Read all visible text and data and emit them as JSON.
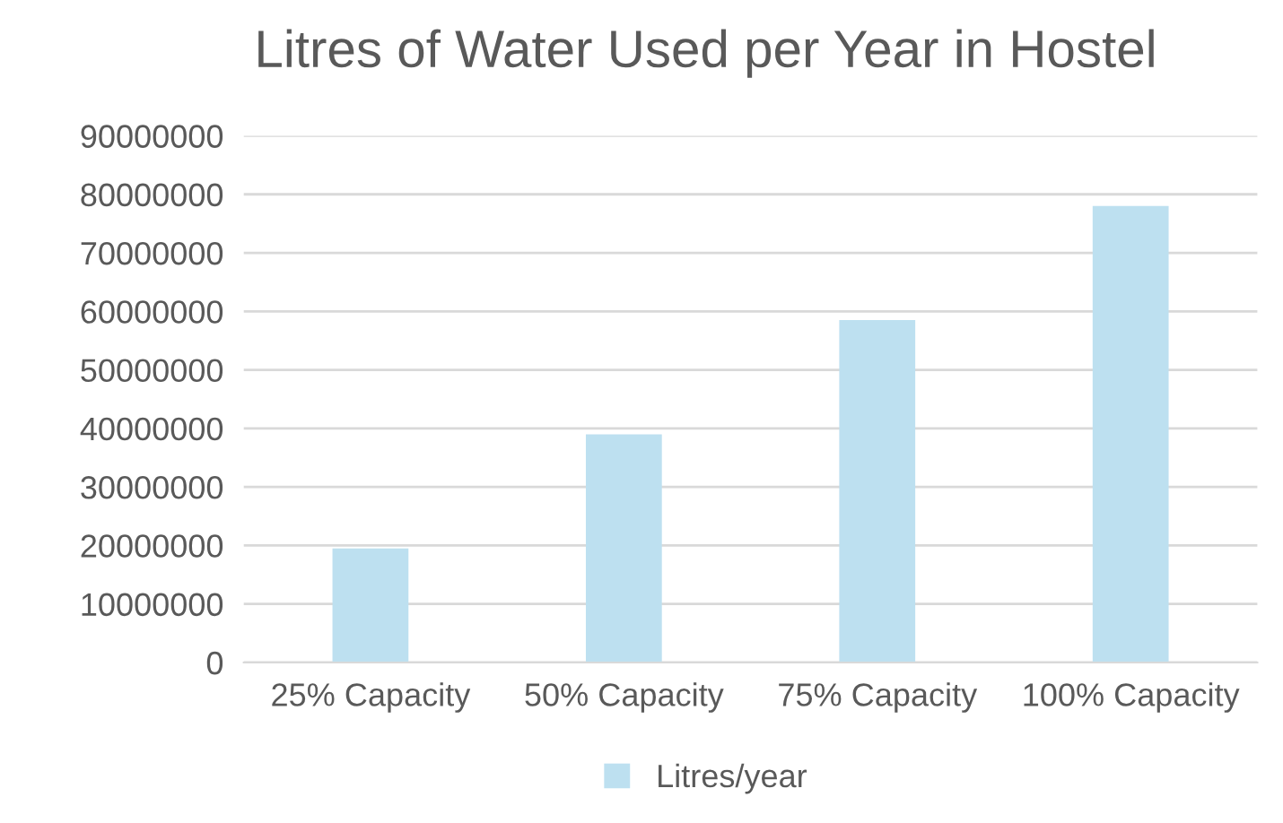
{
  "chart_data": {
    "type": "bar",
    "title": "Litres of Water Used per Year in Hostel",
    "categories": [
      "25% Capacity",
      "50% Capacity",
      "75% Capacity",
      "100% Capacity"
    ],
    "series": [
      {
        "name": "Litres/year",
        "color": "#bde0f0",
        "values": [
          19500000,
          39000000,
          58500000,
          78000000
        ]
      }
    ],
    "ylim": [
      0,
      90000000
    ],
    "yticks": [
      0,
      10000000,
      20000000,
      30000000,
      40000000,
      50000000,
      60000000,
      70000000,
      80000000,
      90000000
    ],
    "grid": "y",
    "legend": "bottom"
  }
}
